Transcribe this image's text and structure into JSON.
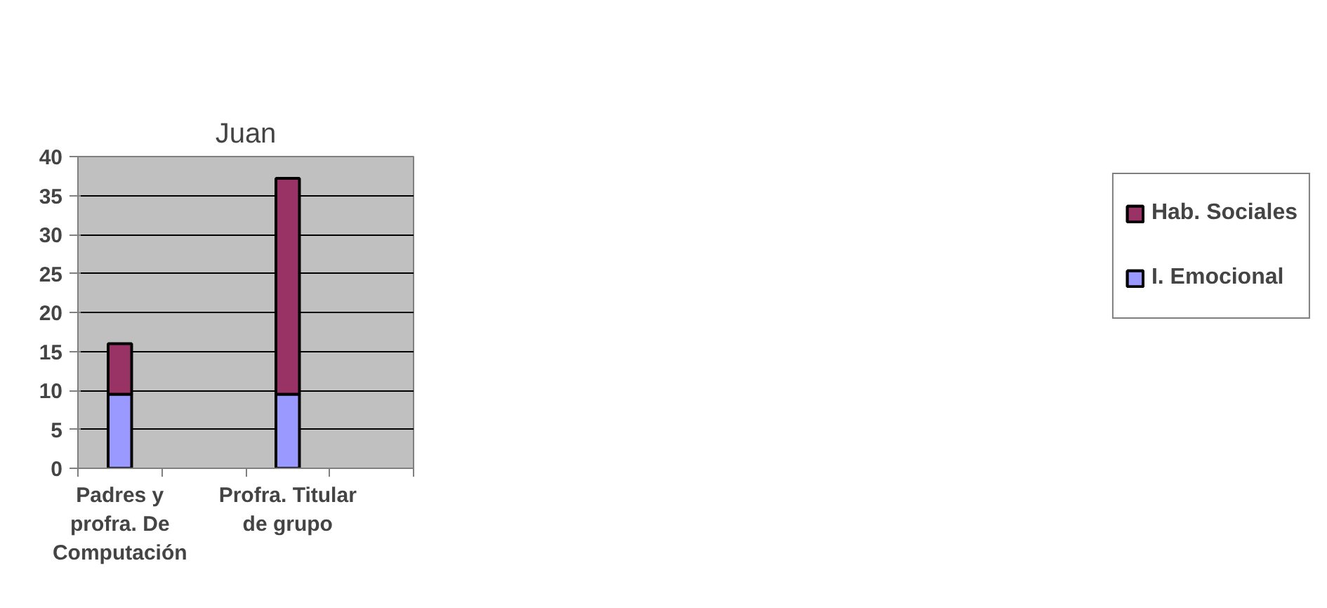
{
  "chart_data": {
    "type": "bar",
    "title": "Juan",
    "stacked": true,
    "categories": [
      "Padres y profra. De Computación",
      null,
      "Profra. Titular de grupo",
      null
    ],
    "series": [
      {
        "name": "I. Emocional",
        "color": "#9999ff",
        "values": [
          9.5,
          null,
          9.5,
          null
        ]
      },
      {
        "name": "Hab. Sociales",
        "color": "#993366",
        "values": [
          6.5,
          null,
          27.7,
          null
        ]
      }
    ],
    "ylim": [
      0,
      40
    ],
    "yticks": [
      0,
      5,
      10,
      15,
      20,
      25,
      30,
      35,
      40
    ],
    "grid": "y",
    "legend": "right"
  }
}
